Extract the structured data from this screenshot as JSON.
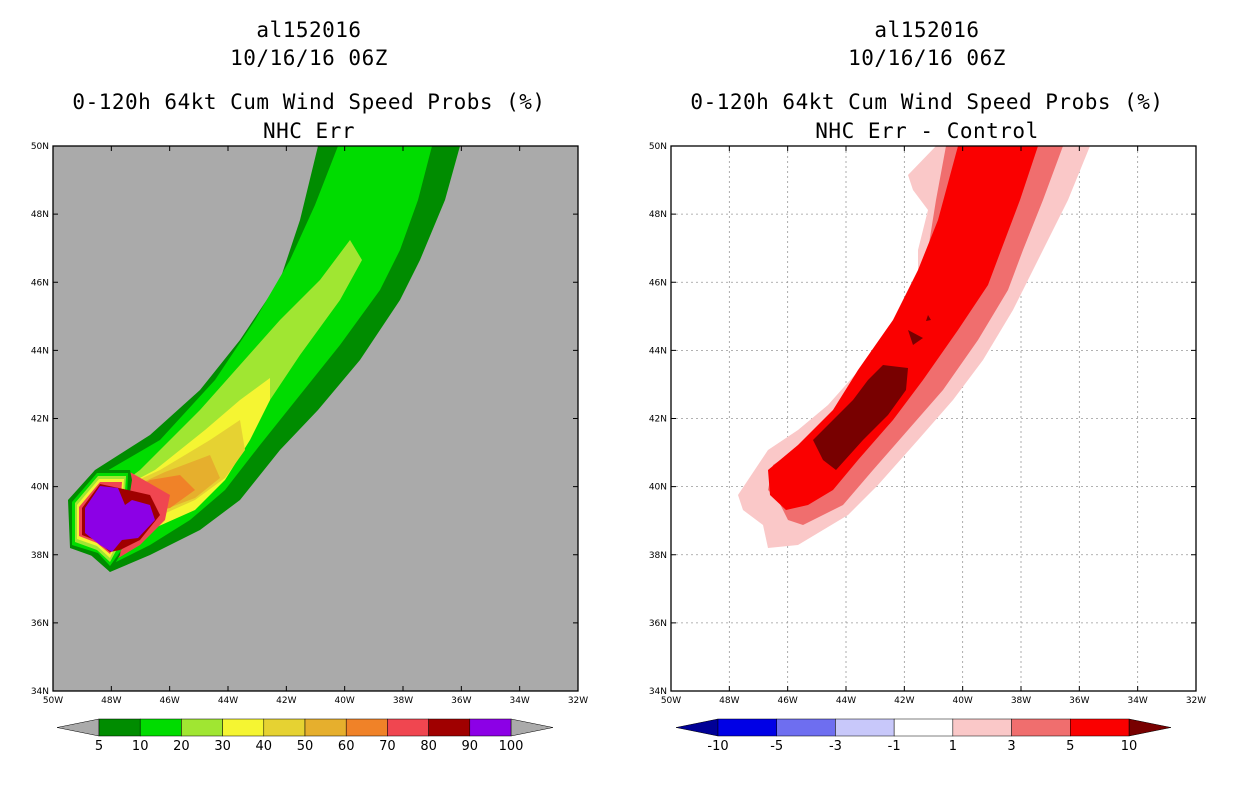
{
  "panels": [
    {
      "storm_id": "al152016",
      "datetime": "10/16/16 06Z",
      "title": "0-120h 64kt Cum Wind Speed Probs (%)",
      "subtitle": "NHC Err",
      "background_color": "#aaaaaa",
      "colorbar": {
        "labels": [
          "5",
          "10",
          "20",
          "30",
          "40",
          "50",
          "60",
          "70",
          "80",
          "90",
          "100"
        ],
        "colors": [
          "#008c00",
          "#00dc00",
          "#a0e632",
          "#f5f532",
          "#e6d232",
          "#e6af2d",
          "#f08228",
          "#f04650",
          "#a00000",
          "#8c00e6"
        ],
        "end_low": "#aaaaaa",
        "end_high": "#aaaaaa"
      }
    },
    {
      "storm_id": "al152016",
      "datetime": "10/16/16 06Z",
      "title": "0-120h 64kt Cum Wind Speed Probs (%)",
      "subtitle": "NHC Err - Control",
      "background_color": "#ffffff",
      "colorbar": {
        "labels": [
          "-10",
          "-5",
          "-3",
          "-1",
          "1",
          "3",
          "5",
          "10"
        ],
        "colors": [
          "#0000e6",
          "#6e6ef0",
          "#c8c8fa",
          "#ffffff",
          "#fac8c8",
          "#f06e6e",
          "#fa0000"
        ],
        "end_low": "#000096",
        "end_high": "#780000"
      }
    }
  ],
  "map": {
    "lon_labels": [
      "50W",
      "48W",
      "46W",
      "44W",
      "42W",
      "40W",
      "38W",
      "36W",
      "34W",
      "32W"
    ],
    "lat_labels": [
      "34N",
      "36N",
      "38N",
      "40N",
      "42N",
      "44N",
      "46N",
      "48N",
      "50N"
    ]
  }
}
